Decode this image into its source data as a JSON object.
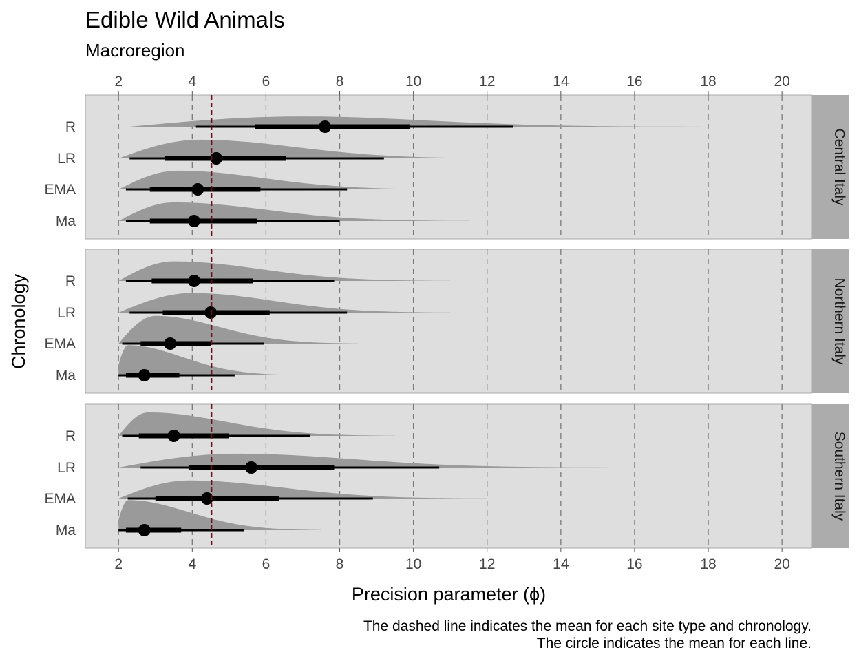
{
  "chart_data": {
    "type": "halfeye",
    "title": "Edible Wild Animals",
    "subtitle": "Macroregion",
    "xlabel": "Precision parameter (ϕ)",
    "ylabel": "Chronology",
    "xlim": [
      1.1,
      20.8
    ],
    "x_ticks": [
      2,
      4,
      6,
      8,
      10,
      12,
      14,
      16,
      18,
      20
    ],
    "grid": "vertical dashed at ticks",
    "mean_line": {
      "value": 4.52,
      "color": "#6b0f1a",
      "style": "dashed"
    },
    "categories": [
      "R",
      "LR",
      "EMA",
      "Ma"
    ],
    "colors": {
      "panel_bg": "#dedede",
      "strip_bg": "#acacac",
      "density": "#9a9a9a",
      "interval": "#000000"
    },
    "caption": [
      "The dashed line indicates the mean for each site type and chronology.",
      "The circle indicates the mean for each line."
    ],
    "panels": [
      {
        "name": "Central Italy",
        "rows": [
          {
            "label": "R",
            "mean": 7.6,
            "inner": [
              5.7,
              9.9
            ],
            "outer": [
              4.1,
              12.7
            ],
            "density": {
              "lo": 2.3,
              "mode": 7.0,
              "hi": 17.8,
              "height": 0.34
            }
          },
          {
            "label": "LR",
            "mean": 4.65,
            "inner": [
              3.25,
              6.55
            ],
            "outer": [
              2.3,
              9.2
            ],
            "density": {
              "lo": 2.0,
              "mode": 4.2,
              "hi": 12.5,
              "height": 0.62
            }
          },
          {
            "label": "EMA",
            "mean": 4.15,
            "inner": [
              2.85,
              5.85
            ],
            "outer": [
              2.2,
              8.2
            ],
            "density": {
              "lo": 2.0,
              "mode": 3.6,
              "hi": 11.0,
              "height": 0.62
            }
          },
          {
            "label": "Ma",
            "mean": 4.05,
            "inner": [
              2.85,
              5.75
            ],
            "outer": [
              2.2,
              8.0
            ],
            "density": {
              "lo": 2.0,
              "mode": 3.5,
              "hi": 11.5,
              "height": 0.62
            }
          }
        ]
      },
      {
        "name": "Northern Italy",
        "rows": [
          {
            "label": "R",
            "mean": 4.05,
            "inner": [
              2.9,
              5.65
            ],
            "outer": [
              2.2,
              7.85
            ],
            "density": {
              "lo": 2.0,
              "mode": 3.5,
              "hi": 11.0,
              "height": 0.65
            }
          },
          {
            "label": "LR",
            "mean": 4.5,
            "inner": [
              3.2,
              6.1
            ],
            "outer": [
              2.3,
              8.2
            ],
            "density": {
              "lo": 2.0,
              "mode": 4.0,
              "hi": 11.0,
              "height": 0.65
            }
          },
          {
            "label": "EMA",
            "mean": 3.4,
            "inner": [
              2.6,
              4.5
            ],
            "outer": [
              2.1,
              5.95
            ],
            "density": {
              "lo": 2.0,
              "mode": 3.0,
              "hi": 8.5,
              "height": 0.92
            }
          },
          {
            "label": "Ma",
            "mean": 2.7,
            "inner": [
              2.2,
              3.65
            ],
            "outer": [
              2.0,
              5.15
            ],
            "density": {
              "lo": 2.0,
              "mode": 2.25,
              "hi": 7.0,
              "height": 1.0
            }
          }
        ]
      },
      {
        "name": "Southern Italy",
        "rows": [
          {
            "label": "R",
            "mean": 3.5,
            "inner": [
              2.55,
              5.0
            ],
            "outer": [
              2.1,
              7.2
            ],
            "density": {
              "lo": 2.0,
              "mode": 2.8,
              "hi": 9.5,
              "height": 0.78
            }
          },
          {
            "label": "LR",
            "mean": 5.6,
            "inner": [
              3.9,
              7.85
            ],
            "outer": [
              2.6,
              10.7
            ],
            "density": {
              "lo": 2.0,
              "mode": 5.2,
              "hi": 15.3,
              "height": 0.46
            }
          },
          {
            "label": "EMA",
            "mean": 4.4,
            "inner": [
              3.0,
              6.35
            ],
            "outer": [
              2.25,
              8.9
            ],
            "density": {
              "lo": 2.0,
              "mode": 3.9,
              "hi": 12.0,
              "height": 0.6
            }
          },
          {
            "label": "Ma",
            "mean": 2.7,
            "inner": [
              2.2,
              3.7
            ],
            "outer": [
              2.0,
              5.4
            ],
            "density": {
              "lo": 2.0,
              "mode": 2.25,
              "hi": 7.5,
              "height": 1.0
            }
          }
        ]
      }
    ]
  }
}
